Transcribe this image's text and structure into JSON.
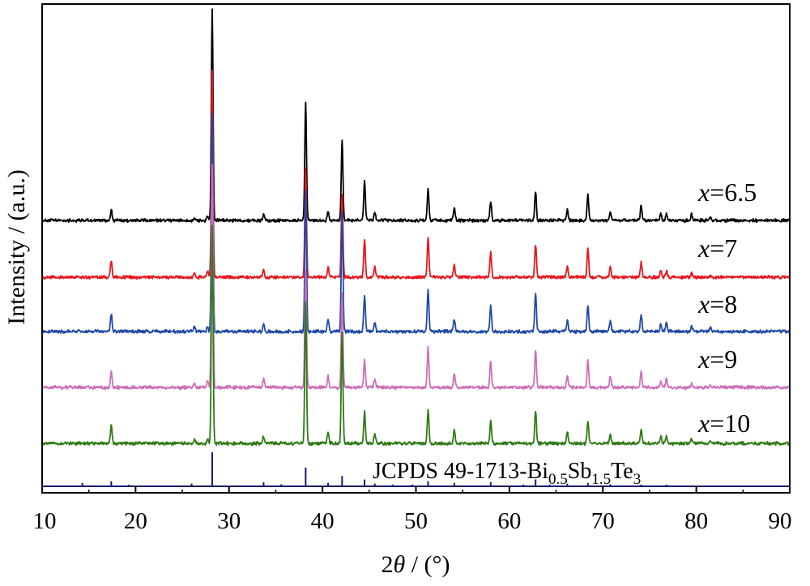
{
  "chart_data": {
    "type": "line",
    "xlabel_prefix": "2",
    "xlabel_symbol": "θ",
    "xlabel_suffix": " / (°)",
    "ylabel": "Intensity / (a.u.)",
    "xlim": [
      10,
      90
    ],
    "x_ticks": [
      10,
      20,
      30,
      40,
      50,
      60,
      70,
      80,
      90
    ],
    "y_ticks_shown": false,
    "grid": false,
    "label_var": "x",
    "series": [
      {
        "name": "=6.5",
        "color": "#000000",
        "peaks": [
          [
            17.4,
            0.05
          ],
          [
            26.3,
            0.01
          ],
          [
            27.7,
            0.02
          ],
          [
            28.2,
            1.0
          ],
          [
            33.7,
            0.03
          ],
          [
            38.2,
            0.55
          ],
          [
            40.6,
            0.04
          ],
          [
            42.1,
            0.38
          ],
          [
            44.5,
            0.19
          ],
          [
            45.6,
            0.04
          ],
          [
            51.3,
            0.15
          ],
          [
            54.1,
            0.06
          ],
          [
            58.0,
            0.09
          ],
          [
            62.8,
            0.14
          ],
          [
            66.2,
            0.05
          ],
          [
            68.4,
            0.12
          ],
          [
            70.8,
            0.04
          ],
          [
            74.1,
            0.07
          ],
          [
            76.2,
            0.03
          ],
          [
            76.8,
            0.03
          ],
          [
            79.5,
            0.03
          ],
          [
            81.5,
            0.01
          ]
        ]
      },
      {
        "name": "=7",
        "color": "#e8161e",
        "peaks": [
          [
            17.4,
            0.08
          ],
          [
            26.3,
            0.02
          ],
          [
            27.7,
            0.03
          ],
          [
            28.2,
            1.0
          ],
          [
            33.7,
            0.04
          ],
          [
            38.2,
            0.52
          ],
          [
            40.6,
            0.05
          ],
          [
            42.1,
            0.4
          ],
          [
            44.5,
            0.18
          ],
          [
            45.6,
            0.05
          ],
          [
            51.3,
            0.19
          ],
          [
            54.1,
            0.06
          ],
          [
            58.0,
            0.12
          ],
          [
            62.8,
            0.16
          ],
          [
            66.2,
            0.05
          ],
          [
            68.4,
            0.14
          ],
          [
            70.8,
            0.05
          ],
          [
            74.1,
            0.07
          ],
          [
            76.2,
            0.03
          ],
          [
            76.8,
            0.03
          ],
          [
            79.5,
            0.02
          ],
          [
            81.5,
            0.01
          ]
        ]
      },
      {
        "name": "=8",
        "color": "#2049a8",
        "peaks": [
          [
            17.4,
            0.08
          ],
          [
            26.3,
            0.02
          ],
          [
            27.7,
            0.02
          ],
          [
            28.2,
            1.0
          ],
          [
            33.7,
            0.03
          ],
          [
            38.2,
            0.65
          ],
          [
            40.6,
            0.06
          ],
          [
            42.1,
            0.55
          ],
          [
            44.5,
            0.16
          ],
          [
            45.6,
            0.04
          ],
          [
            51.3,
            0.19
          ],
          [
            54.1,
            0.06
          ],
          [
            58.0,
            0.12
          ],
          [
            62.8,
            0.18
          ],
          [
            66.2,
            0.05
          ],
          [
            68.4,
            0.12
          ],
          [
            70.8,
            0.05
          ],
          [
            74.1,
            0.08
          ],
          [
            76.2,
            0.03
          ],
          [
            76.8,
            0.04
          ],
          [
            79.5,
            0.03
          ],
          [
            81.5,
            0.02
          ]
        ]
      },
      {
        "name": "=9",
        "color": "#cc6fb8",
        "peaks": [
          [
            17.4,
            0.07
          ],
          [
            26.3,
            0.02
          ],
          [
            27.7,
            0.03
          ],
          [
            28.2,
            1.0
          ],
          [
            33.7,
            0.04
          ],
          [
            38.2,
            0.53
          ],
          [
            40.6,
            0.05
          ],
          [
            42.1,
            0.43
          ],
          [
            44.5,
            0.12
          ],
          [
            45.6,
            0.04
          ],
          [
            51.3,
            0.18
          ],
          [
            54.1,
            0.06
          ],
          [
            58.0,
            0.12
          ],
          [
            62.8,
            0.17
          ],
          [
            66.2,
            0.05
          ],
          [
            68.4,
            0.12
          ],
          [
            70.8,
            0.05
          ],
          [
            74.1,
            0.07
          ],
          [
            76.2,
            0.03
          ],
          [
            76.8,
            0.04
          ],
          [
            79.5,
            0.02
          ],
          [
            81.5,
            0.01
          ]
        ]
      },
      {
        "name": "=10",
        "color": "#2e7b14",
        "peaks": [
          [
            17.4,
            0.08
          ],
          [
            26.3,
            0.02
          ],
          [
            27.7,
            0.02
          ],
          [
            28.2,
            1.0
          ],
          [
            33.7,
            0.03
          ],
          [
            38.2,
            0.65
          ],
          [
            40.6,
            0.05
          ],
          [
            42.1,
            0.5
          ],
          [
            44.5,
            0.14
          ],
          [
            45.6,
            0.04
          ],
          [
            51.3,
            0.15
          ],
          [
            54.1,
            0.06
          ],
          [
            58.0,
            0.1
          ],
          [
            62.8,
            0.15
          ],
          [
            66.2,
            0.05
          ],
          [
            68.4,
            0.1
          ],
          [
            70.8,
            0.04
          ],
          [
            74.1,
            0.06
          ],
          [
            76.2,
            0.03
          ],
          [
            76.8,
            0.03
          ],
          [
            79.5,
            0.02
          ],
          [
            81.5,
            0.01
          ]
        ]
      }
    ],
    "reference": {
      "label": "JCPDS 49-1713-Bi",
      "sub1": "0.5",
      "mid1": "Sb",
      "sub2": "1.5",
      "mid2": "Te",
      "sub3": "3",
      "color": "#1a1a6e",
      "lines": [
        [
          14.3,
          0.1
        ],
        [
          17.4,
          0.15
        ],
        [
          19.3,
          0.05
        ],
        [
          26.0,
          0.08
        ],
        [
          28.2,
          1.0
        ],
        [
          33.7,
          0.12
        ],
        [
          35.6,
          0.06
        ],
        [
          38.2,
          0.55
        ],
        [
          40.6,
          0.1
        ],
        [
          42.1,
          0.3
        ],
        [
          44.5,
          0.2
        ],
        [
          45.6,
          0.08
        ],
        [
          47.5,
          0.05
        ],
        [
          49.6,
          0.05
        ],
        [
          51.3,
          0.15
        ],
        [
          54.1,
          0.1
        ],
        [
          58.0,
          0.12
        ],
        [
          61.5,
          0.05
        ],
        [
          62.8,
          0.2
        ],
        [
          64.3,
          0.05
        ],
        [
          66.2,
          0.08
        ],
        [
          68.4,
          0.1
        ],
        [
          70.8,
          0.06
        ],
        [
          74.1,
          0.05
        ],
        [
          76.8,
          0.05
        ]
      ]
    }
  }
}
